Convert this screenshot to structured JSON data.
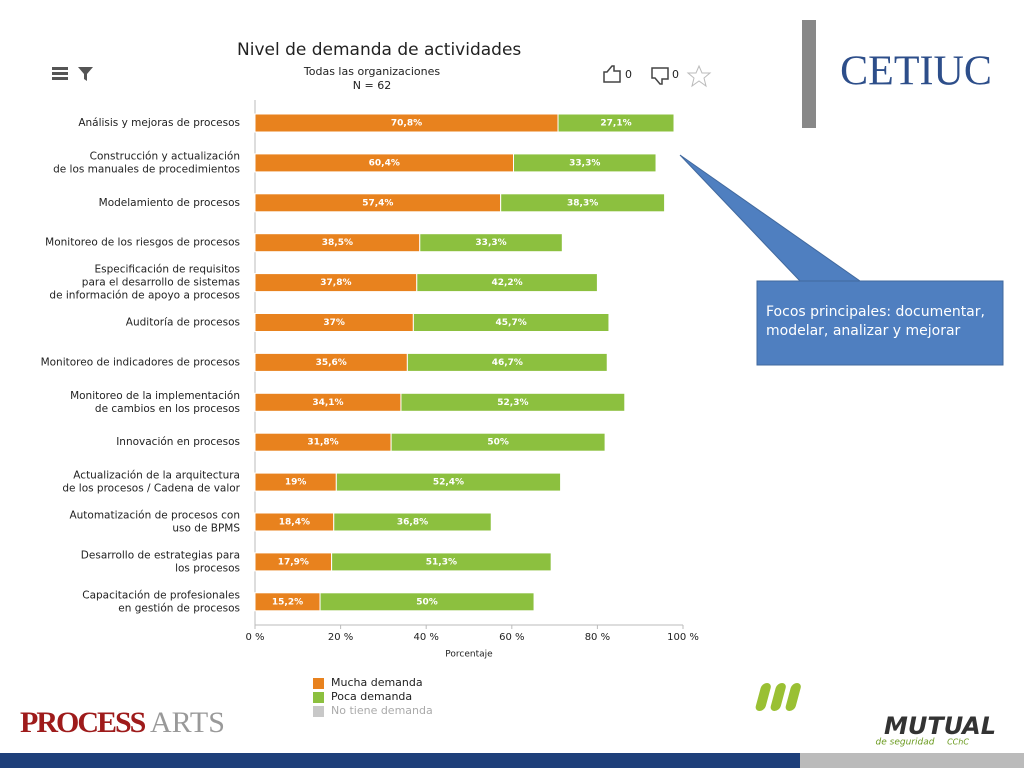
{
  "chart_data": {
    "type": "stacked-bar-horizontal",
    "title": "Nivel de demanda de actividades",
    "subtitle": [
      "Todas las organizaciones",
      "N = 62"
    ],
    "categories": [
      [
        "Análisis y mejoras de procesos"
      ],
      [
        "Construcción y actualización",
        "de los manuales de procedimientos"
      ],
      [
        "Modelamiento de procesos"
      ],
      [
        "Monitoreo de los riesgos de procesos"
      ],
      [
        "Especificación de requisitos",
        "para el desarrollo de sistemas",
        "de información de apoyo a procesos"
      ],
      [
        "Auditoría de procesos"
      ],
      [
        "Monitoreo de indicadores de procesos"
      ],
      [
        "Monitoreo de la implementación",
        "de cambios en los procesos"
      ],
      [
        "Innovación en procesos"
      ],
      [
        "Actualización de la arquitectura",
        "de los procesos / Cadena de valor"
      ],
      [
        "Automatización de procesos con",
        "uso de BPMS"
      ],
      [
        "Desarrollo de estrategias para",
        "los procesos"
      ],
      [
        "Capacitación de profesionales",
        "en gestión de procesos"
      ]
    ],
    "series": [
      {
        "name": "Mucha demanda",
        "color": "#e8821e",
        "values": [
          70.8,
          60.4,
          57.4,
          38.5,
          37.8,
          37,
          35.6,
          34.1,
          31.8,
          19,
          18.4,
          17.9,
          15.2
        ],
        "value_labels": [
          "70,8%",
          "60,4%",
          "57,4%",
          "38,5%",
          "37,8%",
          "37%",
          "35,6%",
          "34,1%",
          "31,8%",
          "19%",
          "18,4%",
          "17,9%",
          "15,2%"
        ]
      },
      {
        "name": "Poca demanda",
        "color": "#8cc03f",
        "values": [
          27.1,
          33.3,
          38.3,
          33.3,
          42.2,
          45.7,
          46.7,
          52.3,
          50,
          52.4,
          36.8,
          51.3,
          50
        ],
        "value_labels": [
          "27,1%",
          "33,3%",
          "38,3%",
          "33,3%",
          "42,2%",
          "45,7%",
          "46,7%",
          "52,3%",
          "50%",
          "52,4%",
          "36,8%",
          "51,3%",
          "50%"
        ]
      },
      {
        "name": "No tiene demanda",
        "color": "#c8c8c8",
        "values": [
          null,
          null,
          null,
          null,
          null,
          null,
          null,
          null,
          null,
          null,
          null,
          null,
          null
        ]
      }
    ],
    "xlim": [
      0,
      100
    ],
    "xticks": [
      {
        "value": 0,
        "label": "0 %"
      },
      {
        "value": 20,
        "label": "20 %"
      },
      {
        "value": 40,
        "label": "40 %"
      },
      {
        "value": 60,
        "label": "60 %"
      },
      {
        "value": 80,
        "label": "80 %"
      },
      {
        "value": 100,
        "label": "100 %"
      }
    ],
    "xlabel": "Porcentaje",
    "likes": "0",
    "dislikes": "0"
  },
  "callout": "Focos principales: documentar, modelar, analizar y mejorar",
  "logos": {
    "cetiuc": "CETIUC",
    "process": "PROCESS",
    "arts": "ARTS",
    "mutual": "MUTUAL",
    "mutual_sub": "de seguridad",
    "cchc": "CChC"
  }
}
